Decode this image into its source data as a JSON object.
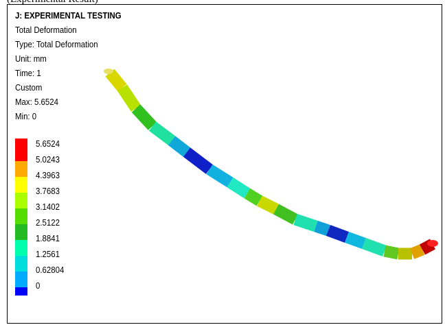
{
  "caption": "(Experimental Result)",
  "info": {
    "title": "J: EXPERIMENTAL TESTING",
    "lines": [
      "Total Deformation",
      "Type: Total Deformation",
      "Unit: mm",
      "Time: 1",
      "Custom",
      "Max: 5.6524",
      "Min: 0"
    ]
  },
  "legend": {
    "labels": [
      "5.6524",
      "5.0243",
      "4.3963",
      "3.7683",
      "3.1402",
      "2.5122",
      "1.8841",
      "1.2561",
      "0.62804",
      "0"
    ],
    "colors": [
      "#ff0000",
      "#ffaa00",
      "#ffff00",
      "#aaff00",
      "#55dd00",
      "#22bb22",
      "#00ffaa",
      "#00dddd",
      "#00aaff",
      "#0000ff"
    ]
  }
}
